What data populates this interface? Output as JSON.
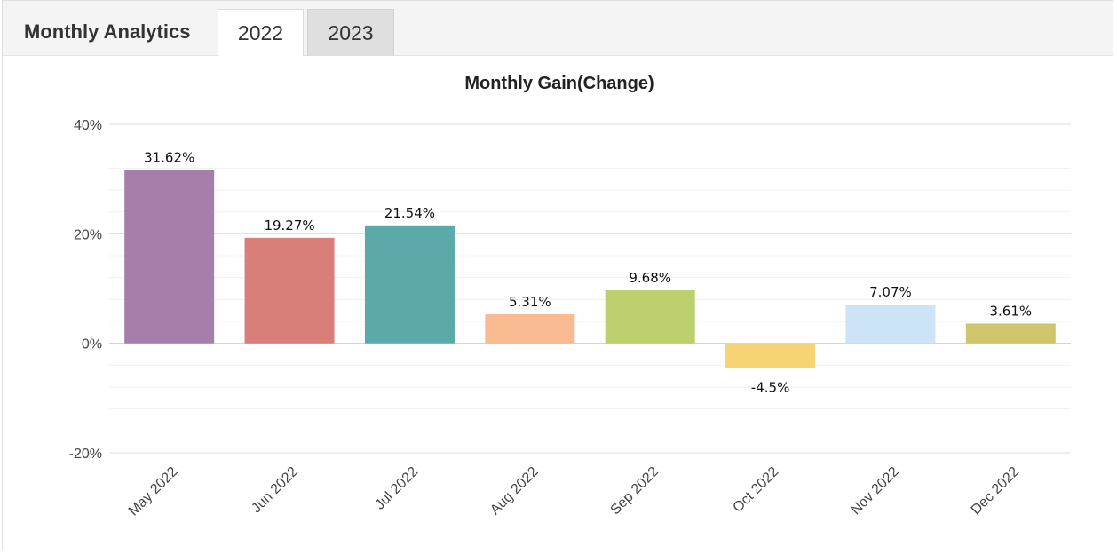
{
  "header": {
    "title": "Monthly Analytics",
    "tabs": [
      {
        "label": "2022",
        "active": true
      },
      {
        "label": "2023",
        "active": false
      }
    ]
  },
  "chart_data": {
    "type": "bar",
    "title": "Monthly Gain(Change)",
    "xlabel": "",
    "ylabel": "",
    "categories": [
      "May 2022",
      "Jun 2022",
      "Jul 2022",
      "Aug 2022",
      "Sep 2022",
      "Oct 2022",
      "Nov 2022",
      "Dec 2022"
    ],
    "values": [
      31.62,
      19.27,
      21.54,
      5.31,
      9.68,
      -4.5,
      7.07,
      3.61
    ],
    "data_labels": [
      "31.62%",
      "19.27%",
      "21.54%",
      "5.31%",
      "9.68%",
      "-4.5%",
      "7.07%",
      "3.61%"
    ],
    "colors": [
      "#a57fa9",
      "#d97f79",
      "#5ba9a9",
      "#fabb92",
      "#bcd06d",
      "#f6d375",
      "#cde3f7",
      "#cfc66b"
    ],
    "ylim": [
      -20,
      40
    ],
    "yticks": [
      -20,
      0,
      20,
      40
    ],
    "ytick_labels": [
      "-20%",
      "0%",
      "20%",
      "40%"
    ],
    "grid": true,
    "legend": "none"
  }
}
